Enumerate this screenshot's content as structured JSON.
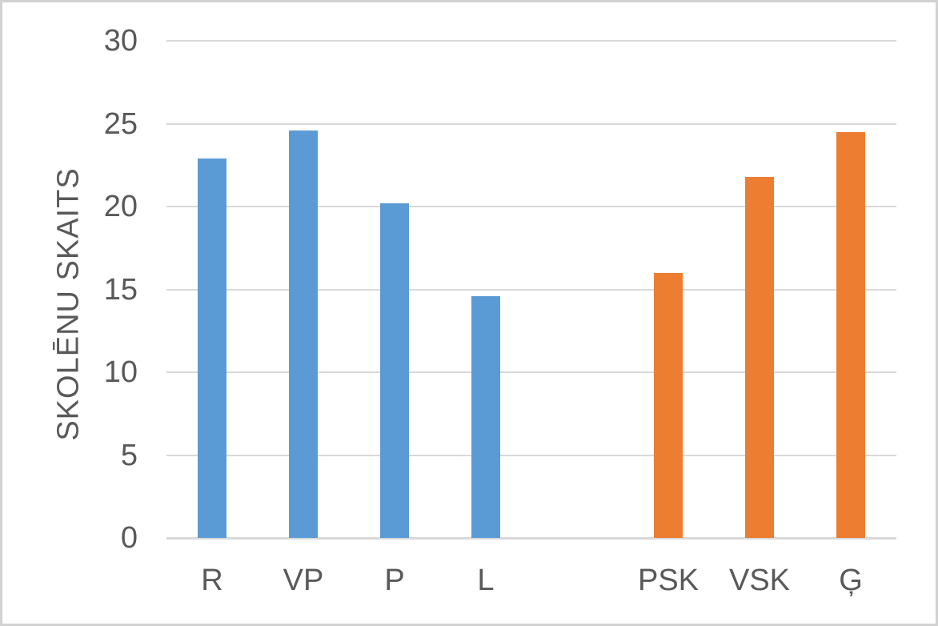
{
  "chart_data": {
    "type": "bar",
    "title": "",
    "xlabel": "",
    "ylabel": "SKOLĒNU SKAITS",
    "ylim": [
      0,
      30
    ],
    "yticks": [
      0,
      5,
      10,
      15,
      20,
      25,
      30
    ],
    "grid": true,
    "legend": false,
    "categories": [
      "R",
      "VP",
      "P",
      "L",
      "",
      "PSK",
      "VSK",
      "Ģ"
    ],
    "values": [
      22.9,
      24.6,
      20.2,
      14.6,
      null,
      16,
      21.8,
      24.5
    ],
    "bar_colors": [
      "#5B9BD5",
      "#5B9BD5",
      "#5B9BD5",
      "#5B9BD5",
      null,
      "#ED7D31",
      "#ED7D31",
      "#ED7D31"
    ]
  },
  "colors": {
    "bar_blue": "#5B9BD5",
    "bar_orange": "#ED7D31",
    "gridline": "#D9D9D9",
    "axis_line": "#D9D9D9",
    "text": "#595959",
    "frame_border": "#D2D2D2",
    "background": "#FFFFFF"
  }
}
